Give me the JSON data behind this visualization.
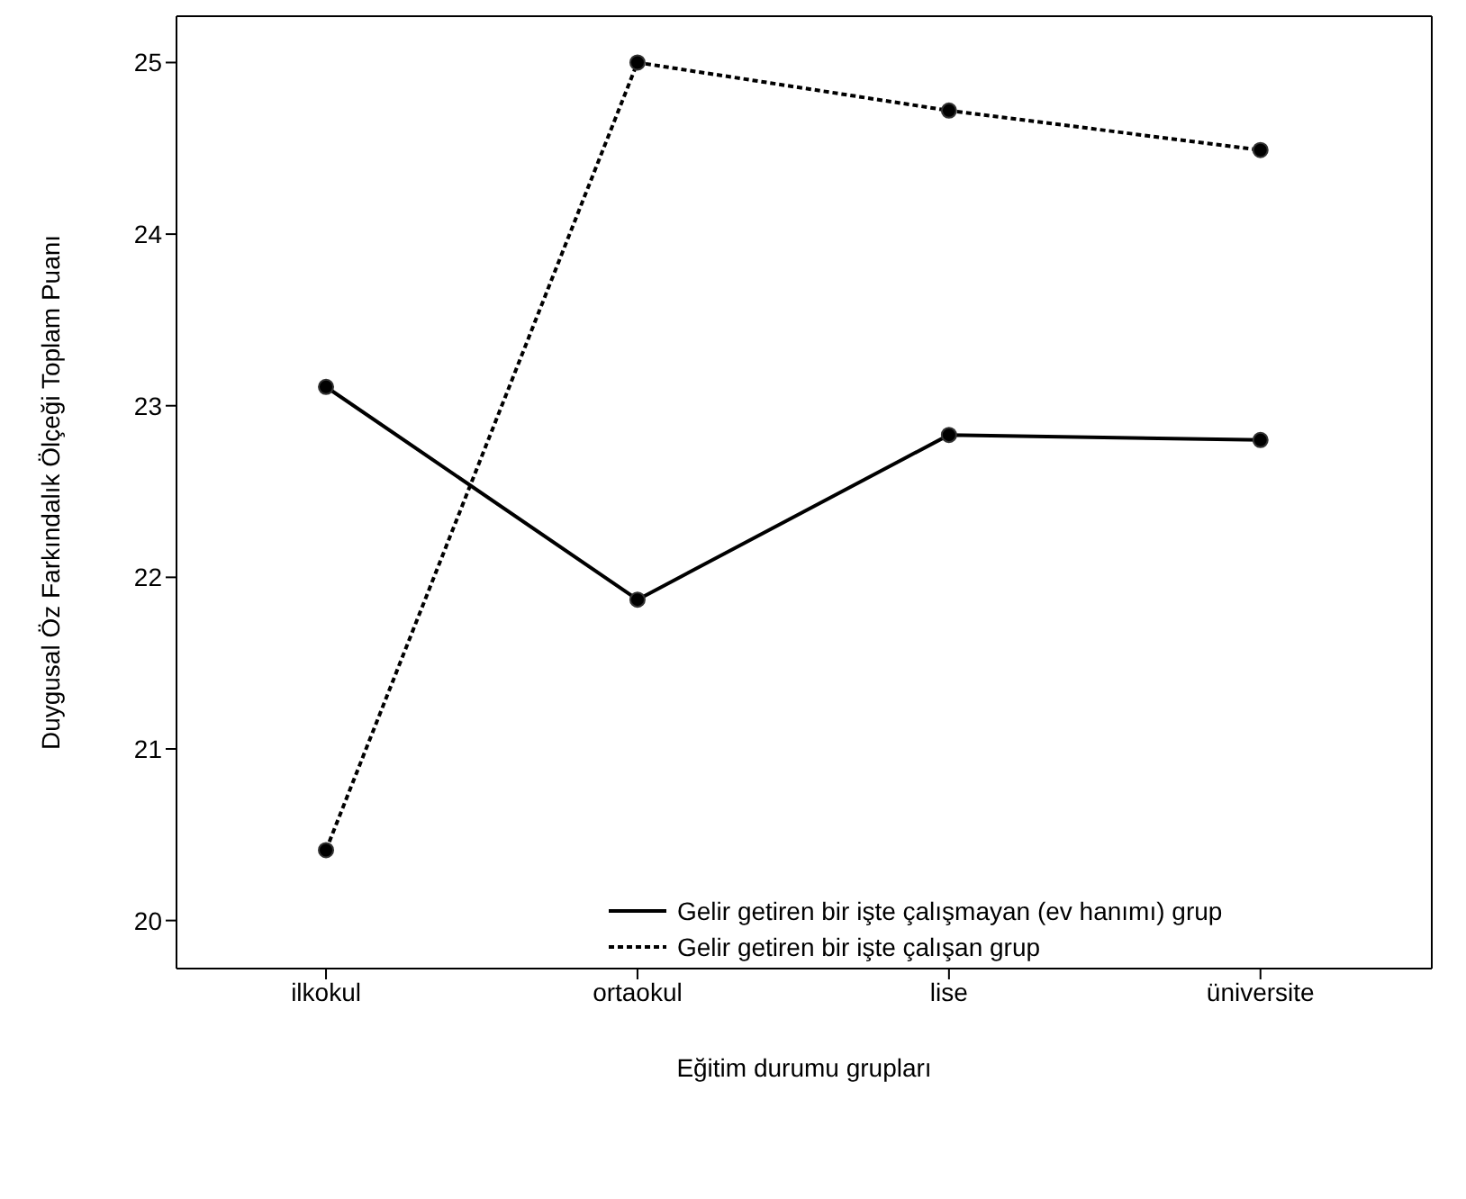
{
  "chart_data": {
    "type": "line",
    "xlabel": "Eğitim durumu grupları",
    "ylabel": "Duygusal Öz Farkındalık Ölçeği Toplam Puanı",
    "categories": [
      "ilkokul",
      "ortaokul",
      "lise",
      "üniversite"
    ],
    "ylim": [
      19.72,
      25.27
    ],
    "yticks": [
      20,
      21,
      22,
      23,
      24,
      25
    ],
    "grid": false,
    "legend": "bottom right",
    "marker": "circle",
    "series": [
      {
        "name": "Gelir getiren bir işte çalışmayan (ev hanımı) grup",
        "color": "#000000",
        "line_style": "solid",
        "values": [
          23.11,
          21.87,
          22.83,
          22.8
        ]
      },
      {
        "name": "Gelir getiren bir işte çalışan grup",
        "color": "#000000",
        "line_style": "dotted",
        "values": [
          20.41,
          25.0,
          24.72,
          24.49
        ]
      }
    ]
  }
}
